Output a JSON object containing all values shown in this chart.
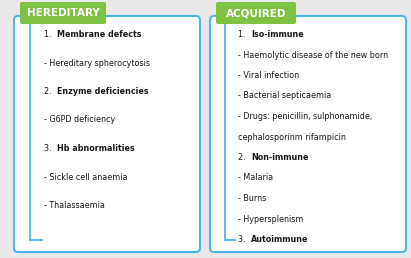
{
  "title_left": "HEREDITARY",
  "title_right": "ACQUIRED",
  "title_bg": "#7dc242",
  "title_color": "white",
  "title_fontsize": 7.5,
  "box_border_color": "#4db8e8",
  "box_bg": "white",
  "left_lines": [
    {
      "text": "1. ",
      "bold": false,
      "bold_part": "Membrane defects"
    },
    {
      "text": "- Hereditary spherocytosis",
      "bold": false,
      "bold_part": ""
    },
    {
      "text": "2. ",
      "bold": false,
      "bold_part": "Enzyme deficiencies"
    },
    {
      "text": "- G6PD deficiency",
      "bold": false,
      "bold_part": ""
    },
    {
      "text": "3. ",
      "bold": false,
      "bold_part": "Hb abnormalities"
    },
    {
      "text": "- Sickle cell anaemia",
      "bold": false,
      "bold_part": ""
    },
    {
      "text": "- Thalassaemia",
      "bold": false,
      "bold_part": ""
    }
  ],
  "right_lines": [
    {
      "text": "1. ",
      "bold": false,
      "bold_part": "Iso-immune"
    },
    {
      "text": "- Haemolytic disease of the new born",
      "bold": false,
      "bold_part": ""
    },
    {
      "text": "- Viral infection",
      "bold": false,
      "bold_part": ""
    },
    {
      "text": "- Bacterial septicaemia",
      "bold": false,
      "bold_part": ""
    },
    {
      "text": "- Drugs: penicillin, sulphonamide,",
      "bold": false,
      "bold_part": ""
    },
    {
      "text": "cephalosporinm rifampicin",
      "bold": false,
      "bold_part": ""
    },
    {
      "text": "2. ",
      "bold": false,
      "bold_part": "Non-immune"
    },
    {
      "text": "- Malaria",
      "bold": false,
      "bold_part": ""
    },
    {
      "text": "- Burns",
      "bold": false,
      "bold_part": ""
    },
    {
      "text": "- Hypersplenism",
      "bold": false,
      "bold_part": ""
    },
    {
      "text": "3. ",
      "bold": false,
      "bold_part": "Autoimmune"
    }
  ],
  "text_fontsize": 5.8,
  "fig_bg": "#e8e8e8",
  "line_color": "#4db8e8"
}
